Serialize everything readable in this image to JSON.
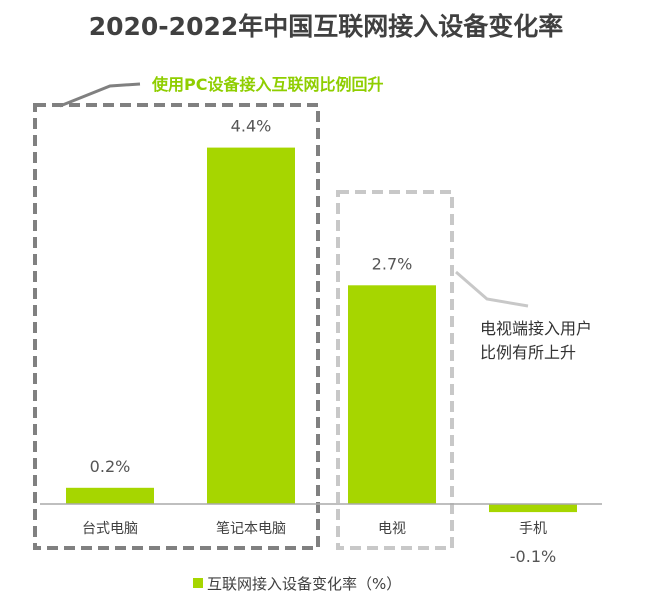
{
  "chart_data": {
    "type": "bar",
    "title": "2020-2022年中国互联网接入设备变化率",
    "categories": [
      "台式电脑",
      "笔记本电脑",
      "电视",
      "手机"
    ],
    "series": [
      {
        "name": "互联网接入设备变化率（%）",
        "values": [
          0.2,
          4.4,
          2.7,
          -0.1
        ]
      }
    ],
    "value_labels": [
      "0.2%",
      "4.4%",
      "2.7%",
      "-0.1%"
    ],
    "xlabel": "",
    "ylabel": "",
    "ylim": [
      -0.1,
      4.4
    ],
    "grid": false,
    "legend": "bottom",
    "annotations": [
      {
        "text": "使用PC设备接入互联网比例回升",
        "color": "#8fce00"
      },
      {
        "lines": [
          "电视端接入用户",
          "比例有所上升"
        ],
        "color": "#333333"
      }
    ],
    "colors": {
      "bar": "#a6d600",
      "title": "#404040",
      "axis": "#aaaaaa",
      "box1": "#808080",
      "box2": "#c8c8c8"
    }
  }
}
